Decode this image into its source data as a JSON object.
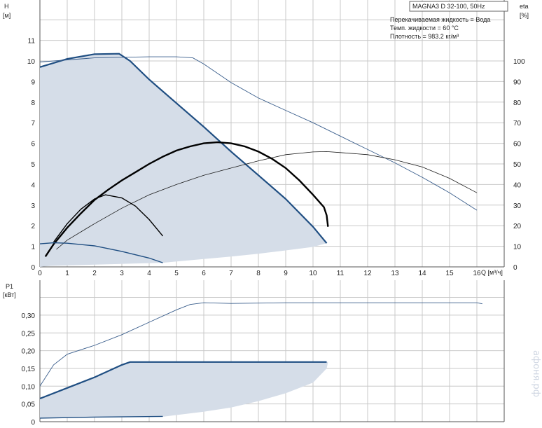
{
  "chart_data": [
    {
      "type": "line",
      "title": "MAGNA3 D 32-100, 50Hz",
      "xlabel": "Q [м³/ч]",
      "ylabel": "H [м]",
      "y2label": "eta [%]",
      "xlim": [
        0,
        17
      ],
      "ylim": [
        0,
        12
      ],
      "y2lim": [
        0,
        120
      ],
      "xticks": [
        "0",
        "1",
        "2",
        "3",
        "4",
        "5",
        "6",
        "7",
        "8",
        "9",
        "10",
        "11",
        "12",
        "13",
        "14",
        "15",
        "16"
      ],
      "yticks": [
        "0",
        "1",
        "2",
        "3",
        "4",
        "5",
        "6",
        "7",
        "8",
        "9",
        "10",
        "11"
      ],
      "y2ticks": [
        "0",
        "10",
        "20",
        "30",
        "40",
        "50",
        "60",
        "70",
        "80",
        "90",
        "100"
      ],
      "grid": true,
      "annotations": [
        "Перекачиваемая жидкость = Вода",
        "Темп. жидкости = 60 °C",
        "Плотность = 983.2 кг/м³"
      ],
      "area": {
        "upper": [
          [
            0,
            9.7
          ],
          [
            1,
            10.1
          ],
          [
            2,
            10.33
          ],
          [
            2.9,
            10.35
          ],
          [
            3.3,
            10.0
          ],
          [
            4,
            9.1
          ],
          [
            5,
            7.95
          ],
          [
            6,
            6.8
          ],
          [
            7,
            5.6
          ],
          [
            8,
            4.45
          ],
          [
            9,
            3.3
          ],
          [
            10,
            1.95
          ],
          [
            10.5,
            1.15
          ]
        ],
        "lower": [
          [
            4.5,
            0.2
          ],
          [
            6,
            0.38
          ],
          [
            7,
            0.5
          ],
          [
            8,
            0.64
          ],
          [
            9,
            0.8
          ],
          [
            10,
            0.97
          ],
          [
            10.5,
            1.15
          ]
        ]
      },
      "series": [
        {
          "role": "max-curve-thin",
          "values": [
            [
              0,
              9.95
            ],
            [
              2,
              10.15
            ],
            [
              4,
              10.2
            ],
            [
              5,
              10.2
            ],
            [
              5.6,
              10.15
            ],
            [
              6,
              9.85
            ],
            [
              7,
              8.95
            ],
            [
              8,
              8.2
            ],
            [
              9,
              7.6
            ],
            [
              10,
              7.0
            ],
            [
              11,
              6.35
            ],
            [
              12,
              5.7
            ],
            [
              13,
              5.05
            ],
            [
              14,
              4.35
            ],
            [
              15,
              3.6
            ],
            [
              16,
              2.75
            ]
          ]
        },
        {
          "role": "eta-max",
          "values": [
            [
              0.6,
              8.5
            ],
            [
              1,
              13
            ],
            [
              2,
              21
            ],
            [
              3,
              28.5
            ],
            [
              4,
              35
            ],
            [
              5,
              40
            ],
            [
              6,
              44.5
            ],
            [
              7,
              48
            ],
            [
              8,
              51.5
            ],
            [
              9,
              54.5
            ],
            [
              10,
              55.8
            ],
            [
              10.5,
              56
            ],
            [
              11,
              55.5
            ],
            [
              12,
              54.5
            ],
            [
              13,
              52
            ],
            [
              14,
              48.5
            ],
            [
              15,
              43
            ],
            [
              16,
              36
            ]
          ]
        },
        {
          "role": "eta-max-curve",
          "values": [
            [
              0.2,
              5
            ],
            [
              0.5,
              11
            ],
            [
              1,
              19
            ],
            [
              1.5,
              26
            ],
            [
              2,
              32.5
            ],
            [
              2.5,
              37.5
            ],
            [
              3,
              42
            ],
            [
              3.5,
              46
            ],
            [
              4,
              50
            ],
            [
              4.5,
              53.5
            ],
            [
              5,
              56.5
            ],
            [
              5.5,
              58.5
            ],
            [
              6,
              60
            ],
            [
              6.5,
              60.5
            ],
            [
              7,
              60
            ],
            [
              7.5,
              58.5
            ],
            [
              8,
              56
            ],
            [
              8.5,
              52.5
            ],
            [
              9,
              48
            ],
            [
              9.5,
              42
            ],
            [
              10,
              35
            ],
            [
              10.4,
              29
            ],
            [
              10.5,
              25
            ],
            [
              10.55,
              19.5
            ]
          ]
        },
        {
          "role": "eta-min-curve",
          "values": [
            [
              0.5,
              12
            ],
            [
              1,
              21
            ],
            [
              1.5,
              28
            ],
            [
              2,
              33
            ],
            [
              2.4,
              35
            ],
            [
              3,
              33.5
            ],
            [
              3.5,
              29.5
            ],
            [
              4,
              23
            ],
            [
              4.5,
              15
            ]
          ]
        },
        {
          "role": "min-curve",
          "values": [
            [
              0,
              1.12
            ],
            [
              0.5,
              1.17
            ],
            [
              1,
              1.15
            ],
            [
              2,
              1.02
            ],
            [
              3,
              0.75
            ],
            [
              4,
              0.43
            ],
            [
              4.5,
              0.2
            ]
          ]
        }
      ]
    },
    {
      "type": "line",
      "xlabel": "",
      "ylabel": "P1 [кВт]",
      "xlim": [
        0,
        17
      ],
      "ylim": [
        0,
        0.36
      ],
      "yticks": [
        "0",
        "0,05",
        "0,10",
        "0,15",
        "0,20",
        "0,25",
        "0,30"
      ],
      "grid": true,
      "area": {
        "upper": [
          [
            0,
            0.065
          ],
          [
            1,
            0.095
          ],
          [
            2,
            0.125
          ],
          [
            3,
            0.16
          ],
          [
            3.3,
            0.168
          ],
          [
            10.5,
            0.168
          ]
        ],
        "lower": [
          [
            0,
            0.01
          ],
          [
            4.5,
            0.014
          ],
          [
            6,
            0.028
          ],
          [
            7,
            0.04
          ],
          [
            8,
            0.058
          ],
          [
            9,
            0.08
          ],
          [
            10,
            0.11
          ],
          [
            10.5,
            0.15
          ],
          [
            10.55,
            0.168
          ]
        ]
      },
      "series": [
        {
          "role": "max-power",
          "values": [
            [
              0,
              0.1
            ],
            [
              0.5,
              0.16
            ],
            [
              1,
              0.19
            ],
            [
              2,
              0.215
            ],
            [
              3,
              0.245
            ],
            [
              4,
              0.28
            ],
            [
              5,
              0.315
            ],
            [
              5.5,
              0.33
            ],
            [
              6,
              0.335
            ],
            [
              7,
              0.333
            ],
            [
              8,
              0.334
            ],
            [
              9,
              0.335
            ],
            [
              10,
              0.335
            ],
            [
              16,
              0.335
            ],
            [
              16.2,
              0.332
            ]
          ]
        },
        {
          "role": "power-curve",
          "values": [
            [
              0,
              0.065
            ],
            [
              1,
              0.095
            ],
            [
              2,
              0.125
            ],
            [
              3,
              0.16
            ],
            [
              3.3,
              0.168
            ],
            [
              10.5,
              0.168
            ]
          ]
        },
        {
          "role": "min-power",
          "values": [
            [
              0,
              0.01
            ],
            [
              2,
              0.013
            ],
            [
              4.5,
              0.015
            ]
          ]
        }
      ]
    }
  ],
  "watermark": "афоня.рф"
}
